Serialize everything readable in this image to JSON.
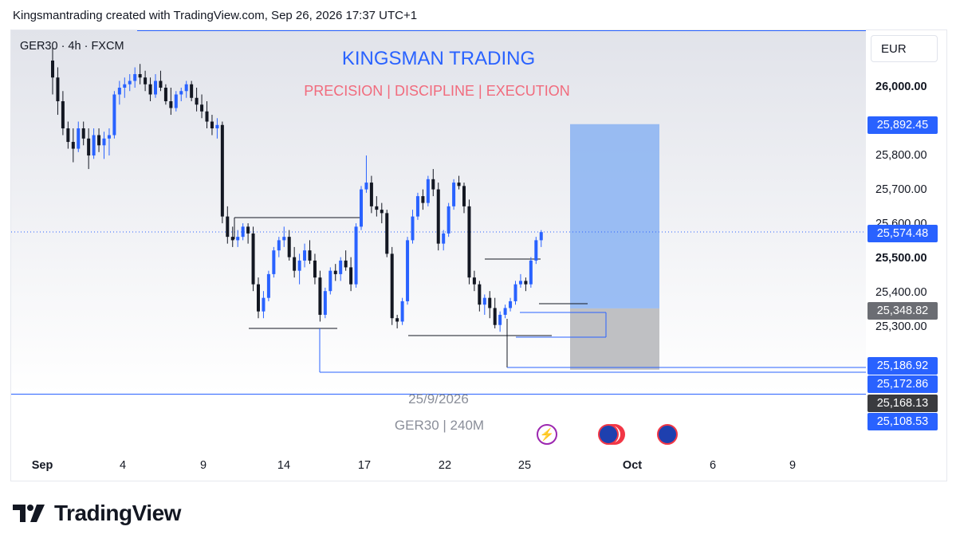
{
  "header": {
    "text": "Kingsmantrading created with TradingView.com, Sep 26, 2026 17:37 UTC+1"
  },
  "symbol": {
    "label": "GER30 · 4h · FXCM"
  },
  "watermark": {
    "title": "KINGSMAN TRADING",
    "subtitle": "PRECISION |  DISCIPLINE  |  EXECUTION",
    "date": "25/9/2026",
    "symbol": "GER30 | 240M"
  },
  "currency": "EUR",
  "colors": {
    "bull": "#2962ff",
    "bear": "#131722",
    "target_zone": "#8ab3f2",
    "stop_zone": "#b8b9bc",
    "tag_blue": "#2962ff",
    "tag_gray": "#6b6d73",
    "tag_dark": "#3a3b3f"
  },
  "price_axis": {
    "labels": [
      {
        "text": "26,000.00",
        "bold": true
      },
      {
        "text": "25,800.00",
        "bold": false
      },
      {
        "text": "25,700.00",
        "bold": false
      },
      {
        "text": "25,600.00",
        "bold": false
      },
      {
        "text": "25,500.00",
        "bold": true
      },
      {
        "text": "25,400.00",
        "bold": false
      },
      {
        "text": "25,300.00",
        "bold": false
      }
    ],
    "tags": [
      {
        "text": "25,892.45",
        "style": "blue"
      },
      {
        "text": "25,574.48",
        "style": "blue"
      },
      {
        "text": "25,348.82",
        "style": "gray"
      },
      {
        "text": "25,186.92",
        "style": "blue"
      },
      {
        "text": "25,172.86",
        "style": "blue"
      },
      {
        "text": "25,168.13",
        "style": "dark"
      },
      {
        "text": "25,108.53",
        "style": "blue"
      }
    ]
  },
  "time_axis": {
    "labels": [
      {
        "text": "Sep",
        "bold": true
      },
      {
        "text": "4",
        "bold": false
      },
      {
        "text": "9",
        "bold": false
      },
      {
        "text": "14",
        "bold": false
      },
      {
        "text": "17",
        "bold": false
      },
      {
        "text": "22",
        "bold": false
      },
      {
        "text": "25",
        "bold": false
      },
      {
        "text": "Oct",
        "bold": true
      },
      {
        "text": "6",
        "bold": false
      },
      {
        "text": "9",
        "bold": false
      }
    ]
  },
  "logo": {
    "text": "TradingView"
  },
  "chart_data": {
    "type": "candlestick",
    "symbol": "GER30",
    "timeframe": "4h",
    "ylim": [
      25100,
      26080
    ],
    "last_price": 25574.48,
    "position": {
      "entry": 25348.82,
      "target": 25892.45,
      "stop": 25168.13
    },
    "levels": [
      25186.92,
      25172.86,
      25168.13,
      25108.53
    ],
    "candles": [
      [
        26080,
        26120,
        25980,
        26030
      ],
      [
        26030,
        26060,
        25920,
        25960
      ],
      [
        25960,
        25990,
        25860,
        25880
      ],
      [
        25880,
        25900,
        25820,
        25840
      ],
      [
        25840,
        25880,
        25780,
        25820
      ],
      [
        25820,
        25900,
        25810,
        25880
      ],
      [
        25880,
        25900,
        25830,
        25850
      ],
      [
        25850,
        25880,
        25760,
        25800
      ],
      [
        25800,
        25880,
        25790,
        25860
      ],
      [
        25860,
        25880,
        25810,
        25830
      ],
      [
        25830,
        25870,
        25790,
        25850
      ],
      [
        25850,
        25880,
        25800,
        25860
      ],
      [
        25860,
        25990,
        25850,
        25980
      ],
      [
        25980,
        26020,
        25950,
        26000
      ],
      [
        26000,
        26030,
        25970,
        26010
      ],
      [
        26010,
        26040,
        25990,
        26020
      ],
      [
        26020,
        26060,
        26000,
        26040
      ],
      [
        26040,
        26070,
        26010,
        26030
      ],
      [
        26030,
        26050,
        25990,
        26010
      ],
      [
        26010,
        26030,
        25960,
        25980
      ],
      [
        25980,
        26040,
        25970,
        26020
      ],
      [
        26020,
        26050,
        25990,
        26000
      ],
      [
        26000,
        26010,
        25950,
        25960
      ],
      [
        25960,
        26000,
        25920,
        25940
      ],
      [
        25940,
        25990,
        25930,
        25980
      ],
      [
        25980,
        26000,
        25960,
        25990
      ],
      [
        25990,
        26020,
        25970,
        26010
      ],
      [
        26010,
        26020,
        25960,
        25970
      ],
      [
        25970,
        26000,
        25930,
        25950
      ],
      [
        25950,
        25980,
        25910,
        25930
      ],
      [
        25930,
        25960,
        25880,
        25900
      ],
      [
        25900,
        25920,
        25860,
        25880
      ],
      [
        25880,
        25910,
        25850,
        25890
      ],
      [
        25890,
        25900,
        25600,
        25620
      ],
      [
        25620,
        25650,
        25540,
        25560
      ],
      [
        25560,
        25590,
        25530,
        25550
      ],
      [
        25550,
        25580,
        25530,
        25560
      ],
      [
        25560,
        25600,
        25550,
        25590
      ],
      [
        25590,
        25600,
        25540,
        25570
      ],
      [
        25570,
        25590,
        25400,
        25420
      ],
      [
        25420,
        25440,
        25320,
        25340
      ],
      [
        25340,
        25400,
        25320,
        25380
      ],
      [
        25380,
        25460,
        25370,
        25450
      ],
      [
        25450,
        25530,
        25440,
        25520
      ],
      [
        25520,
        25560,
        25500,
        25550
      ],
      [
        25550,
        25590,
        25530,
        25560
      ],
      [
        25560,
        25580,
        25490,
        25500
      ],
      [
        25500,
        25530,
        25440,
        25460
      ],
      [
        25460,
        25510,
        25420,
        25490
      ],
      [
        25490,
        25540,
        25470,
        25520
      ],
      [
        25520,
        25550,
        25480,
        25490
      ],
      [
        25490,
        25510,
        25420,
        25440
      ],
      [
        25440,
        25460,
        25310,
        25330
      ],
      [
        25330,
        25410,
        25320,
        25400
      ],
      [
        25400,
        25470,
        25390,
        25460
      ],
      [
        25460,
        25480,
        25430,
        25450
      ],
      [
        25450,
        25500,
        25430,
        25490
      ],
      [
        25490,
        25520,
        25460,
        25470
      ],
      [
        25470,
        25500,
        25400,
        25420
      ],
      [
        25420,
        25600,
        25410,
        25590
      ],
      [
        25590,
        25710,
        25580,
        25700
      ],
      [
        25700,
        25800,
        25690,
        25720
      ],
      [
        25720,
        25740,
        25630,
        25650
      ],
      [
        25650,
        25680,
        25620,
        25640
      ],
      [
        25640,
        25660,
        25600,
        25630
      ],
      [
        25630,
        25640,
        25500,
        25510
      ],
      [
        25510,
        25530,
        25300,
        25320
      ],
      [
        25320,
        25330,
        25290,
        25310
      ],
      [
        25310,
        25380,
        25300,
        25370
      ],
      [
        25370,
        25560,
        25360,
        25550
      ],
      [
        25550,
        25640,
        25540,
        25620
      ],
      [
        25620,
        25690,
        25610,
        25680
      ],
      [
        25680,
        25700,
        25640,
        25660
      ],
      [
        25660,
        25740,
        25650,
        25730
      ],
      [
        25730,
        25760,
        25680,
        25700
      ],
      [
        25700,
        25720,
        25520,
        25540
      ],
      [
        25540,
        25580,
        25520,
        25570
      ],
      [
        25570,
        25660,
        25560,
        25650
      ],
      [
        25650,
        25730,
        25640,
        25720
      ],
      [
        25720,
        25740,
        25700,
        25710
      ],
      [
        25710,
        25720,
        25630,
        25650
      ],
      [
        25650,
        25670,
        25420,
        25440
      ],
      [
        25440,
        25460,
        25400,
        25420
      ],
      [
        25420,
        25430,
        25340,
        25360
      ],
      [
        25360,
        25390,
        25330,
        25380
      ],
      [
        25380,
        25400,
        25320,
        25350
      ],
      [
        25350,
        25380,
        25290,
        25300
      ],
      [
        25300,
        25340,
        25280,
        25330
      ],
      [
        25330,
        25360,
        25320,
        25350
      ],
      [
        25350,
        25380,
        25340,
        25370
      ],
      [
        25370,
        25430,
        25360,
        25420
      ],
      [
        25420,
        25450,
        25410,
        25430
      ],
      [
        25430,
        25440,
        25400,
        25420
      ],
      [
        25420,
        25500,
        25410,
        25490
      ],
      [
        25490,
        25560,
        25480,
        25550
      ],
      [
        25550,
        25580,
        25530,
        25574
      ]
    ]
  }
}
